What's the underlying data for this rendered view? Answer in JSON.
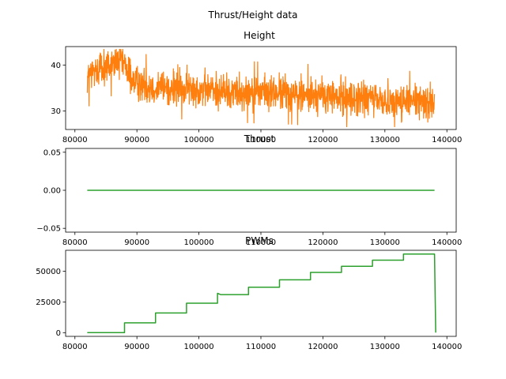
{
  "figure": {
    "title": "Thrust/Height data"
  },
  "chart_data": [
    {
      "type": "line",
      "title": "Height",
      "xlim": [
        78500,
        141500
      ],
      "ylim": [
        26,
        44
      ],
      "xticks": [
        80000,
        90000,
        100000,
        110000,
        120000,
        130000,
        140000
      ],
      "yticks": [
        30,
        40
      ],
      "grid": false,
      "series": [
        {
          "color": "#ff7f0e",
          "trend": {
            "x": [
              82000,
              84000,
              86000,
              87500,
              88500,
              90000,
              92000,
              95000,
              100000,
              105000,
              110000,
              115000,
              120000,
              125000,
              130000,
              134000,
              138000
            ],
            "y": [
              37.5,
              39.5,
              40.0,
              40.8,
              38.5,
              36.0,
              35.5,
              35.0,
              34.8,
              34.3,
              34.0,
              33.8,
              33.2,
              32.8,
              32.3,
              32.0,
              32.0
            ]
          },
          "noise_amplitude": 3.5
        }
      ]
    },
    {
      "type": "line",
      "title": "Thrust",
      "xlim": [
        78500,
        141500
      ],
      "ylim": [
        -0.055,
        0.055
      ],
      "xticks": [
        80000,
        90000,
        100000,
        110000,
        120000,
        130000,
        140000
      ],
      "yticks": [
        -0.05,
        0.0,
        0.05
      ],
      "ytick_labels": [
        "−0.05",
        "0.00",
        "0.05"
      ],
      "grid": false,
      "series": [
        {
          "color": "#2ca02c",
          "x": [
            82000,
            138000
          ],
          "y": [
            0,
            0
          ]
        }
      ]
    },
    {
      "type": "line",
      "title": "PWMs",
      "xlim": [
        78500,
        141500
      ],
      "ylim": [
        -3000,
        67000
      ],
      "xticks": [
        80000,
        90000,
        100000,
        110000,
        120000,
        130000,
        140000
      ],
      "yticks": [
        0,
        25000,
        50000
      ],
      "grid": false,
      "series": [
        {
          "color": "#2ca02c",
          "x": [
            82000,
            88000,
            88000,
            93000,
            93000,
            98000,
            98000,
            103000,
            103000,
            103500,
            108000,
            108000,
            113000,
            113000,
            118000,
            118000,
            123000,
            123000,
            128000,
            128000,
            133000,
            133000,
            138000,
            138200
          ],
          "y": [
            0,
            0,
            8000,
            8000,
            16000,
            16000,
            24000,
            24000,
            32000,
            31000,
            31000,
            37000,
            37000,
            43000,
            43000,
            49000,
            49000,
            54000,
            54000,
            59000,
            59000,
            64000,
            64000,
            0
          ]
        }
      ]
    }
  ]
}
